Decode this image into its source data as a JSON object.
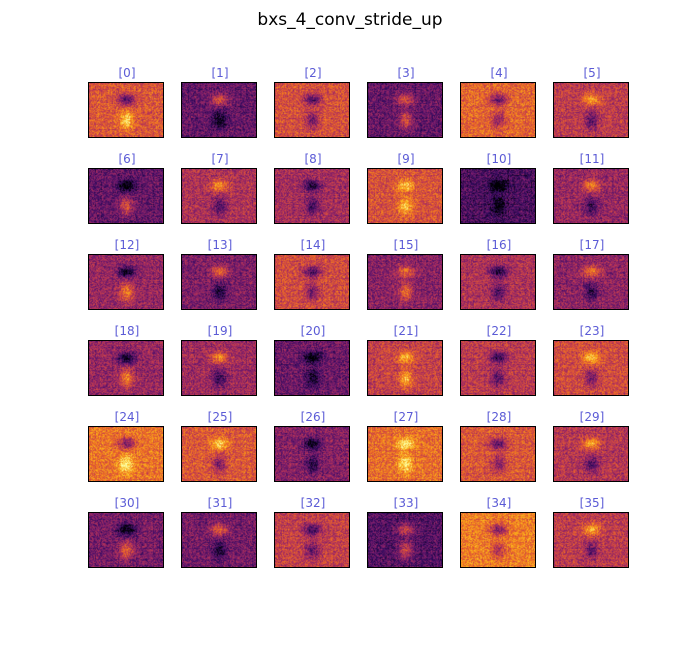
{
  "title": "bxs_4_conv_stride_up",
  "colormap": [
    "#000004",
    "#320a5e",
    "#781c6d",
    "#bc3754",
    "#ed6925",
    "#fbb61a",
    "#fcffa4"
  ],
  "label_color": "#5b5bd6",
  "panels": [
    {
      "label": "[0]",
      "tone": 0.62
    },
    {
      "label": "[1]",
      "tone": 0.3
    },
    {
      "label": "[2]",
      "tone": 0.6
    },
    {
      "label": "[3]",
      "tone": 0.3
    },
    {
      "label": "[4]",
      "tone": 0.66
    },
    {
      "label": "[5]",
      "tone": 0.52
    },
    {
      "label": "[6]",
      "tone": 0.3
    },
    {
      "label": "[7]",
      "tone": 0.48
    },
    {
      "label": "[8]",
      "tone": 0.46
    },
    {
      "label": "[9]",
      "tone": 0.6
    },
    {
      "label": "[10]",
      "tone": 0.24
    },
    {
      "label": "[11]",
      "tone": 0.42
    },
    {
      "label": "[12]",
      "tone": 0.42
    },
    {
      "label": "[13]",
      "tone": 0.36
    },
    {
      "label": "[14]",
      "tone": 0.58
    },
    {
      "label": "[15]",
      "tone": 0.38
    },
    {
      "label": "[16]",
      "tone": 0.48
    },
    {
      "label": "[17]",
      "tone": 0.4
    },
    {
      "label": "[18]",
      "tone": 0.42
    },
    {
      "label": "[19]",
      "tone": 0.44
    },
    {
      "label": "[20]",
      "tone": 0.32
    },
    {
      "label": "[21]",
      "tone": 0.54
    },
    {
      "label": "[22]",
      "tone": 0.52
    },
    {
      "label": "[23]",
      "tone": 0.58
    },
    {
      "label": "[24]",
      "tone": 0.7
    },
    {
      "label": "[25]",
      "tone": 0.62
    },
    {
      "label": "[26]",
      "tone": 0.38
    },
    {
      "label": "[27]",
      "tone": 0.68
    },
    {
      "label": "[28]",
      "tone": 0.62
    },
    {
      "label": "[29]",
      "tone": 0.5
    },
    {
      "label": "[30]",
      "tone": 0.34
    },
    {
      "label": "[31]",
      "tone": 0.34
    },
    {
      "label": "[32]",
      "tone": 0.54
    },
    {
      "label": "[33]",
      "tone": 0.26
    },
    {
      "label": "[34]",
      "tone": 0.72
    },
    {
      "label": "[35]",
      "tone": 0.52
    }
  ]
}
